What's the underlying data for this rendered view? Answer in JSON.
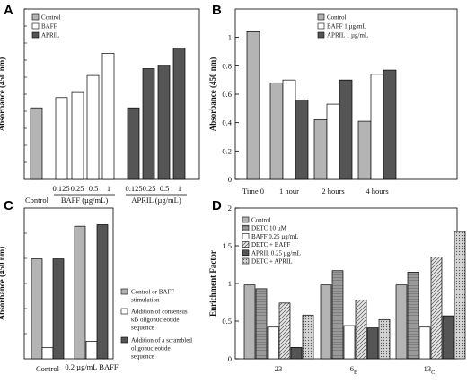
{
  "chart_data": [
    {
      "panel": "A",
      "type": "bar",
      "ylabel": "Absorbance (450 nm)",
      "ylim": [
        0,
        1.0
      ],
      "legend": [
        "Control",
        "BAFF",
        "APRIL"
      ],
      "legend_placement": "top-left",
      "series": [
        {
          "name": "Control",
          "color": "#b4b4b4",
          "x": [
            "Control"
          ],
          "values": [
            0.42
          ]
        },
        {
          "name": "BAFF",
          "color": "#ffffff",
          "x": [
            "0.125",
            "0.25",
            "0.5",
            "1"
          ],
          "values": [
            0.48,
            0.51,
            0.61,
            0.74
          ]
        },
        {
          "name": "APRIL",
          "color": "#555555",
          "x": [
            "0.125",
            "0.25",
            "0.5",
            "1"
          ],
          "values": [
            0.42,
            0.65,
            0.67,
            0.77
          ]
        }
      ],
      "tick_labels": [
        "0.125",
        "0.25",
        "0.5",
        "1",
        "0.125",
        "0.25",
        "0.5",
        "1"
      ],
      "group_labels": [
        "Control",
        "BAFF (µg/mL)",
        "APRIL (µg/mL)"
      ]
    },
    {
      "panel": "B",
      "type": "bar",
      "ylabel": "Absorbance (450 nm)",
      "ylim": [
        0,
        1.2
      ],
      "yticks": [
        "0",
        "0.2",
        "0.4",
        "0.6",
        "0.8",
        "1"
      ],
      "categories": [
        "Time 0",
        "1 hour",
        "2 hours",
        "4 hours"
      ],
      "legend": [
        "Control",
        "BAFF 1 µg/mL",
        "APRIL 1 µg/mL"
      ],
      "legend_placement": "top-left",
      "series": [
        {
          "name": "Control",
          "color": "#b4b4b4",
          "values": [
            1.04,
            0.68,
            0.42,
            0.41
          ]
        },
        {
          "name": "BAFF 1 µg/mL",
          "color": "#ffffff",
          "values": [
            null,
            0.7,
            0.53,
            0.74
          ]
        },
        {
          "name": "APRIL 1 µg/mL",
          "color": "#555555",
          "values": [
            null,
            0.56,
            0.7,
            0.77
          ]
        }
      ]
    },
    {
      "panel": "C",
      "type": "bar",
      "ylabel": "Absorbance (450 nm)",
      "ylim": [
        0,
        3.0
      ],
      "categories": [
        "Control",
        "0.2 µg/mL BAFF"
      ],
      "legend": [
        "Control or BAFF stimulation",
        "Addition of consensus κB oligonucleotide sequence",
        "Addition of a scrambled oligonucleotide sequence"
      ],
      "legend_placement": "right",
      "series": [
        {
          "name": "Control or BAFF stimulation",
          "color": "#b4b4b4",
          "values": [
            1.99,
            2.64
          ]
        },
        {
          "name": "Addition of consensus κB oligonucleotide sequence",
          "color": "#ffffff",
          "values": [
            0.22,
            0.35
          ]
        },
        {
          "name": "Addition of a scrambled oligonucleotide sequence",
          "color": "#555555",
          "values": [
            1.99,
            2.67
          ]
        }
      ]
    },
    {
      "panel": "D",
      "type": "bar",
      "ylabel": "Enrichment Factor",
      "ylim": [
        0,
        2
      ],
      "yticks": [
        "0",
        "0.5",
        "1",
        "1.5",
        "2"
      ],
      "categories": [
        "23",
        "6",
        "13"
      ],
      "category_subscripts": [
        "",
        "B",
        "C"
      ],
      "legend": [
        "Control",
        "DETC 10 µM",
        "BAFF 0.25 µg/mL",
        "DETC + BAFF",
        "APRIL 0.25 µg/mL",
        "DETC + APRIL"
      ],
      "legend_placement": "top-left",
      "series": [
        {
          "name": "Control",
          "color": "#b4b4b4",
          "pattern": "solid",
          "values": [
            0.98,
            0.98,
            0.98
          ]
        },
        {
          "name": "DETC 10 µM",
          "color": "#9a9a9a",
          "pattern": "hatch",
          "values": [
            0.93,
            1.17,
            1.15
          ]
        },
        {
          "name": "BAFF 0.25 µg/mL",
          "color": "#ffffff",
          "pattern": "solid",
          "values": [
            0.42,
            0.44,
            0.42
          ]
        },
        {
          "name": "DETC + BAFF",
          "color": "#dddddd",
          "pattern": "diag",
          "values": [
            0.74,
            0.78,
            1.35
          ]
        },
        {
          "name": "APRIL 0.25 µg/mL",
          "color": "#555555",
          "pattern": "solid",
          "values": [
            0.15,
            0.41,
            0.57
          ]
        },
        {
          "name": "DETC + APRIL",
          "color": "#cfcfcf",
          "pattern": "dots",
          "values": [
            0.58,
            0.52,
            1.69
          ]
        }
      ]
    }
  ]
}
